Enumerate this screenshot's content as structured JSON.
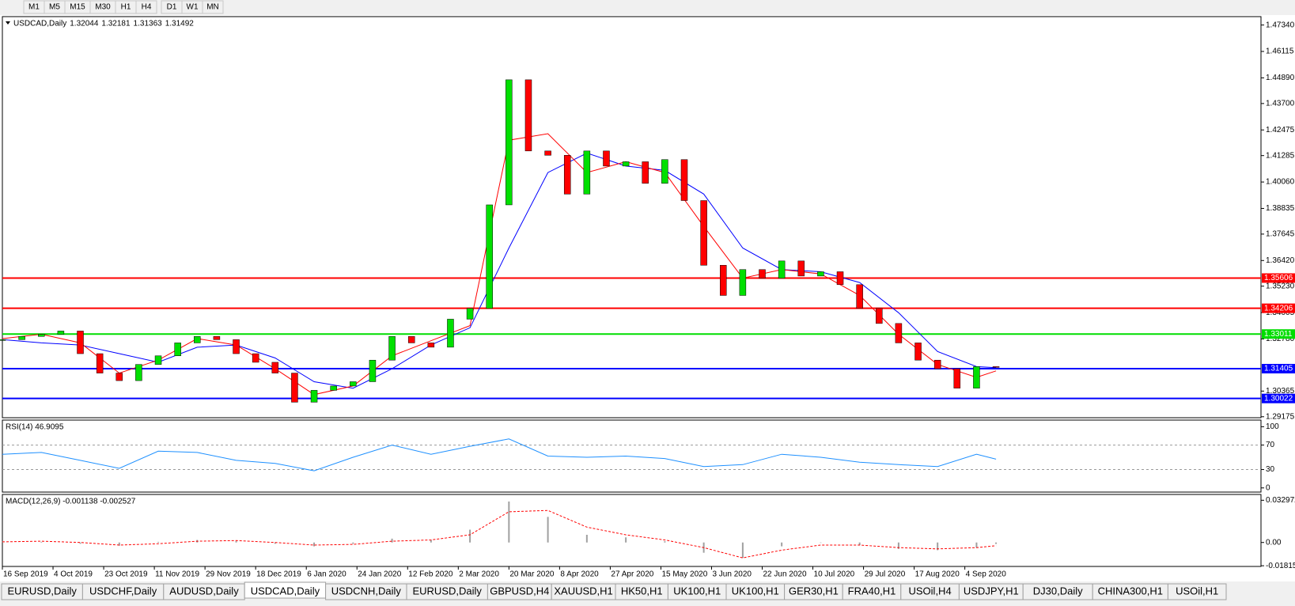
{
  "toolbar": {
    "timeframes": [
      "M1",
      "M5",
      "M15",
      "M30",
      "H1",
      "H4",
      "D1",
      "W1",
      "MN"
    ]
  },
  "chart_data": [
    {
      "type": "candlestick",
      "title": "USDCAD,Daily",
      "quote": [
        "1.32044",
        "1.32181",
        "1.31363",
        "1.31492"
      ],
      "x": [
        0,
        5,
        10,
        15,
        20,
        25,
        30,
        35,
        40,
        45,
        50,
        55,
        60,
        65,
        70,
        75,
        80,
        85,
        90,
        95,
        100,
        105,
        110,
        115,
        120,
        125,
        130,
        135,
        140,
        145,
        150,
        155,
        160,
        165,
        170,
        175,
        180,
        185,
        190,
        195,
        200,
        205,
        210,
        215,
        220,
        225,
        230,
        235,
        240,
        245,
        250,
        255
      ],
      "values": [
        1.3275,
        1.329,
        1.33,
        1.3315,
        1.321,
        1.312,
        1.3085,
        1.316,
        1.32,
        1.326,
        1.329,
        1.3275,
        1.321,
        1.317,
        1.312,
        1.2985,
        1.304,
        1.306,
        1.308,
        1.318,
        1.329,
        1.326,
        1.324,
        1.337,
        1.342,
        1.39,
        1.448,
        1.415,
        1.413,
        1.395,
        1.415,
        1.408,
        1.41,
        1.4,
        1.411,
        1.392,
        1.362,
        1.348,
        1.36,
        1.356,
        1.364,
        1.357,
        1.359,
        1.353,
        1.342,
        1.335,
        1.326,
        1.318,
        1.314,
        1.305,
        1.315,
        1.31492
      ],
      "up_color": "#00e000",
      "down_color": "#ff0000",
      "moving_averages": [
        {
          "color": "#0000ff",
          "x": [
            0,
            10,
            20,
            30,
            40,
            50,
            60,
            70,
            80,
            90,
            100,
            110,
            120,
            130,
            140,
            150,
            160,
            170,
            180,
            190,
            200,
            210,
            220,
            230,
            240,
            250,
            255
          ],
          "values": [
            1.3275,
            1.326,
            1.325,
            1.321,
            1.317,
            1.324,
            1.325,
            1.319,
            1.308,
            1.305,
            1.314,
            1.325,
            1.333,
            1.37,
            1.405,
            1.414,
            1.408,
            1.406,
            1.395,
            1.37,
            1.36,
            1.359,
            1.354,
            1.34,
            1.322,
            1.315,
            1.3145
          ]
        },
        {
          "color": "#ff0000",
          "x": [
            0,
            10,
            20,
            30,
            40,
            50,
            60,
            70,
            80,
            90,
            100,
            110,
            120,
            130,
            140,
            150,
            160,
            170,
            180,
            190,
            200,
            210,
            220,
            230,
            240,
            250,
            255
          ],
          "values": [
            1.328,
            1.33,
            1.326,
            1.312,
            1.318,
            1.328,
            1.325,
            1.314,
            1.302,
            1.306,
            1.32,
            1.327,
            1.334,
            1.42,
            1.423,
            1.405,
            1.41,
            1.405,
            1.38,
            1.356,
            1.36,
            1.358,
            1.348,
            1.33,
            1.316,
            1.31,
            1.313
          ]
        }
      ],
      "levels": [
        {
          "value": 1.35606,
          "color": "#ff0000"
        },
        {
          "value": 1.34206,
          "color": "#ff0000"
        },
        {
          "value": 1.33011,
          "color": "#00dd00"
        },
        {
          "value": 1.31405,
          "color": "#0000ff"
        },
        {
          "value": 1.30022,
          "color": "#0000ff"
        }
      ],
      "xlim": [
        0,
        323
      ],
      "ylim": [
        1.2913,
        1.4773
      ],
      "yticks": [
        {
          "value": 1.4734,
          "label": "1.47340"
        },
        1.46115,
        {
          "value": 1.4489,
          "label": "1.44890"
        },
        {
          "value": 1.437,
          "label": "1.43700"
        },
        1.42475,
        1.41285,
        {
          "value": 1.4006,
          "label": "1.40060"
        },
        1.38835,
        1.37645,
        {
          "value": 1.3642,
          "label": "1.36420"
        },
        {
          "value": 1.3523,
          "label": "1.35230"
        },
        1.34005,
        {
          "value": 1.3278,
          "label": "1.32780"
        },
        1.30365,
        1.29175
      ]
    },
    {
      "type": "line",
      "title": "RSI(14) 46.9095",
      "color": "#1e90ff",
      "x": [
        0,
        10,
        20,
        30,
        40,
        50,
        60,
        70,
        80,
        90,
        100,
        110,
        120,
        130,
        140,
        150,
        160,
        170,
        180,
        190,
        200,
        210,
        220,
        230,
        240,
        250,
        255
      ],
      "values": [
        55,
        58,
        45,
        32,
        60,
        58,
        45,
        40,
        28,
        50,
        70,
        55,
        68,
        80,
        52,
        50,
        52,
        48,
        35,
        38,
        55,
        50,
        42,
        38,
        35,
        55,
        46.9095
      ],
      "xlim": [
        0,
        323
      ],
      "ylim": [
        -6.8,
        110.8
      ],
      "yticks": [
        0,
        30,
        70,
        100
      ],
      "dashed_levels": [
        30,
        70
      ]
    },
    {
      "type": "macd",
      "title": "MACD(12,26,9) -0.001138 -0.002527",
      "histogram_color": "#a0a0a0",
      "signal_color": "#ff0000",
      "x": [
        0,
        10,
        20,
        30,
        40,
        50,
        60,
        70,
        80,
        90,
        100,
        110,
        120,
        130,
        140,
        150,
        160,
        170,
        180,
        190,
        200,
        210,
        220,
        230,
        240,
        250,
        255
      ],
      "histogram": [
        0.001,
        0.0005,
        -0.001,
        -0.0025,
        0.0005,
        0.002,
        0.001,
        -0.001,
        -0.003,
        -0.001,
        0.003,
        0.002,
        0.01,
        0.032,
        0.02,
        0.006,
        0.004,
        0.001,
        -0.008,
        -0.012,
        -0.003,
        0,
        -0.002,
        -0.005,
        -0.006,
        -0.004,
        -0.001138
      ],
      "signal": [
        0.0005,
        0.001,
        0,
        -0.002,
        -0.001,
        0.001,
        0.0015,
        0,
        -0.002,
        -0.0015,
        0.001,
        0.002,
        0.006,
        0.024,
        0.025,
        0.012,
        0.006,
        0.002,
        -0.004,
        -0.012,
        -0.006,
        -0.002,
        -0.002,
        -0.004,
        -0.005,
        -0.004,
        -0.002527
      ],
      "xlim": [
        0,
        323
      ],
      "ylim": [
        -0.0187,
        0.0375
      ],
      "yticks": [
        0.032972,
        {
          "value": 0,
          "label": "0.00"
        },
        -0.01815
      ],
      "xticks": [
        {
          "value": 0,
          "label": "16 Sep 2019"
        },
        {
          "value": 13,
          "label": "4 Oct 2019"
        },
        {
          "value": 26,
          "label": "23 Oct 2019"
        },
        {
          "value": 39,
          "label": "11 Nov 2019"
        },
        {
          "value": 52,
          "label": "29 Nov 2019"
        },
        {
          "value": 65,
          "label": "18 Dec 2019"
        },
        {
          "value": 78,
          "label": "6 Jan 2020"
        },
        {
          "value": 91,
          "label": "24 Jan 2020"
        },
        {
          "value": 104,
          "label": "12 Feb 2020"
        },
        {
          "value": 117,
          "label": "2 Mar 2020"
        },
        {
          "value": 130,
          "label": "20 Mar 2020"
        },
        {
          "value": 143,
          "label": "8 Apr 2020"
        },
        {
          "value": 156,
          "label": "27 Apr 2020"
        },
        {
          "value": 169,
          "label": "15 May 2020"
        },
        {
          "value": 182,
          "label": "3 Jun 2020"
        },
        {
          "value": 195,
          "label": "22 Jun 2020"
        },
        {
          "value": 208,
          "label": "10 Jul 2020"
        },
        {
          "value": 221,
          "label": "29 Jul 2020"
        },
        {
          "value": 234,
          "label": "17 Aug 2020"
        },
        {
          "value": 247,
          "label": "4 Sep 2020"
        }
      ]
    }
  ],
  "tabs": {
    "items": [
      "EURUSD,Daily",
      "USDCHF,Daily",
      "AUDUSD,Daily",
      "USDCAD,Daily",
      "USDCNH,Daily",
      "EURUSD,Daily",
      "GBPUSD,H4",
      "XAUUSD,H1",
      "HK50,H1",
      "UK100,H1",
      "UK100,H1",
      "GER30,H1",
      "FRA40,H1",
      "USOil,H4",
      "USDJPY,H1",
      "DJ30,Daily",
      "CHINA300,H1",
      "USOil,H1"
    ],
    "active": 3
  }
}
